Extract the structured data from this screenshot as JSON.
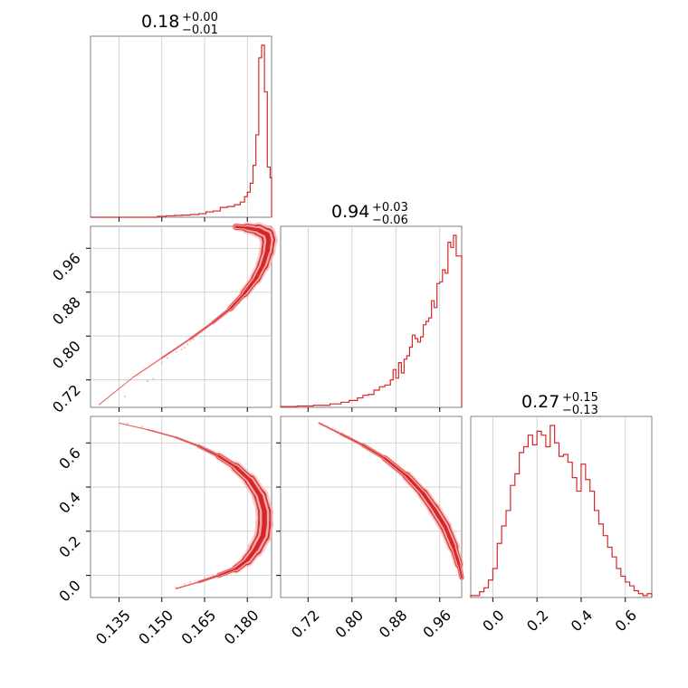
{
  "chart_data": {
    "type": "corner",
    "colors": {
      "main": "#d62728",
      "fill": "#f4a9a9",
      "points": "#ef9a9a"
    },
    "grid": true,
    "parameters": [
      {
        "index": 0,
        "range": [
          0.125,
          0.1885
        ],
        "ticks": [
          0.135,
          0.15,
          0.165,
          0.18
        ],
        "tick_labels": [
          "0.135",
          "0.150",
          "0.165",
          "0.180"
        ]
      },
      {
        "index": 1,
        "range": [
          0.67,
          1.0
        ],
        "ticks": [
          0.72,
          0.8,
          0.88,
          0.96
        ],
        "tick_labels": [
          "0.72",
          "0.80",
          "0.88",
          "0.96"
        ]
      },
      {
        "index": 2,
        "range": [
          -0.1,
          0.72
        ],
        "ticks": [
          0.0,
          0.2,
          0.4,
          0.6
        ],
        "tick_labels": [
          "0.0",
          "0.2",
          "0.4",
          "0.6"
        ]
      }
    ],
    "titles": [
      {
        "value": "0.18",
        "upper": "+0.00",
        "lower": "−0.01"
      },
      {
        "value": "0.94",
        "upper": "+0.03",
        "lower": "−0.06"
      },
      {
        "value": "0.27",
        "upper": "+0.15",
        "lower": "−0.13"
      }
    ],
    "histograms": [
      {
        "param": 0,
        "bin_edges": [
          0.125,
          0.1485,
          0.1515,
          0.1545,
          0.157,
          0.16,
          0.163,
          0.1655,
          0.168,
          0.1705,
          0.173,
          0.1755,
          0.1775,
          0.179,
          0.18,
          0.181,
          0.182,
          0.183,
          0.184,
          0.185,
          0.186,
          0.187,
          0.188,
          0.1885
        ],
        "counts": [
          0,
          0.005,
          0.008,
          0.01,
          0.012,
          0.015,
          0.02,
          0.03,
          0.035,
          0.055,
          0.06,
          0.07,
          0.085,
          0.115,
          0.14,
          0.19,
          0.29,
          0.46,
          0.89,
          0.96,
          0.7,
          0.28,
          0.22
        ]
      },
      {
        "param": 1,
        "bin_edges": [
          0.67,
          0.7,
          0.73,
          0.76,
          0.78,
          0.795,
          0.81,
          0.82,
          0.83,
          0.84,
          0.85,
          0.86,
          0.87,
          0.875,
          0.88,
          0.885,
          0.89,
          0.895,
          0.9,
          0.905,
          0.91,
          0.915,
          0.92,
          0.925,
          0.93,
          0.935,
          0.94,
          0.945,
          0.95,
          0.955,
          0.96,
          0.965,
          0.97,
          0.975,
          0.98,
          0.985,
          0.99,
          1.0
        ],
        "counts": [
          0.005,
          0.008,
          0.012,
          0.02,
          0.03,
          0.04,
          0.055,
          0.07,
          0.075,
          0.1,
          0.12,
          0.13,
          0.16,
          0.22,
          0.17,
          0.26,
          0.2,
          0.28,
          0.3,
          0.35,
          0.42,
          0.4,
          0.38,
          0.41,
          0.48,
          0.5,
          0.52,
          0.62,
          0.58,
          0.72,
          0.73,
          0.8,
          0.78,
          0.96,
          0.93,
          1.0,
          0.88
        ]
      },
      {
        "param": 2,
        "bin_edges": [
          -0.1,
          -0.06,
          -0.04,
          -0.02,
          0.0,
          0.02,
          0.04,
          0.06,
          0.08,
          0.1,
          0.12,
          0.14,
          0.16,
          0.18,
          0.2,
          0.22,
          0.24,
          0.26,
          0.28,
          0.3,
          0.32,
          0.34,
          0.36,
          0.38,
          0.4,
          0.42,
          0.44,
          0.46,
          0.48,
          0.5,
          0.52,
          0.54,
          0.56,
          0.58,
          0.6,
          0.62,
          0.64,
          0.66,
          0.68,
          0.7,
          0.72
        ],
        "counts": [
          0.01,
          0.03,
          0.05,
          0.09,
          0.15,
          0.28,
          0.37,
          0.45,
          0.58,
          0.64,
          0.75,
          0.78,
          0.84,
          0.79,
          0.86,
          0.84,
          0.78,
          0.89,
          0.8,
          0.73,
          0.74,
          0.7,
          0.62,
          0.55,
          0.69,
          0.61,
          0.55,
          0.45,
          0.38,
          0.32,
          0.26,
          0.21,
          0.15,
          0.11,
          0.08,
          0.06,
          0.035,
          0.02,
          0.01,
          0.02
        ]
      }
    ],
    "contour_curves": [
      {
        "xparam": 0,
        "yparam": 1,
        "points": [
          [
            0.128,
            0.675
          ],
          [
            0.14,
            0.725
          ],
          [
            0.15,
            0.76
          ],
          [
            0.16,
            0.795
          ],
          [
            0.168,
            0.825
          ],
          [
            0.174,
            0.85
          ],
          [
            0.179,
            0.878
          ],
          [
            0.183,
            0.905
          ],
          [
            0.1855,
            0.93
          ],
          [
            0.187,
            0.955
          ],
          [
            0.1875,
            0.975
          ],
          [
            0.187,
            0.985
          ],
          [
            0.184,
            0.993
          ],
          [
            0.18,
            0.997
          ],
          [
            0.176,
            0.999
          ]
        ],
        "band_widths": [
          0.5,
          0.6,
          0.8,
          1.2,
          1.6,
          2.5,
          4.5,
          6,
          7,
          8,
          9,
          9,
          7,
          5,
          3
        ]
      },
      {
        "xparam": 0,
        "yparam": 2,
        "points": [
          [
            0.135,
            0.69
          ],
          [
            0.145,
            0.66
          ],
          [
            0.155,
            0.625
          ],
          [
            0.163,
            0.585
          ],
          [
            0.17,
            0.54
          ],
          [
            0.176,
            0.49
          ],
          [
            0.181,
            0.43
          ],
          [
            0.1845,
            0.36
          ],
          [
            0.186,
            0.29
          ],
          [
            0.186,
            0.23
          ],
          [
            0.1855,
            0.18
          ],
          [
            0.183,
            0.12
          ],
          [
            0.18,
            0.07
          ],
          [
            0.176,
            0.03
          ],
          [
            0.17,
            0.0
          ],
          [
            0.163,
            -0.03
          ],
          [
            0.155,
            -0.06
          ]
        ],
        "band_widths": [
          0.5,
          0.7,
          1,
          1.5,
          3,
          5,
          7,
          8,
          9,
          9,
          9,
          8,
          6,
          4,
          2,
          1,
          0.6
        ]
      },
      {
        "xparam": 1,
        "yparam": 2,
        "points": [
          [
            0.74,
            0.69
          ],
          [
            0.78,
            0.64
          ],
          [
            0.82,
            0.59
          ],
          [
            0.86,
            0.53
          ],
          [
            0.9,
            0.45
          ],
          [
            0.93,
            0.37
          ],
          [
            0.95,
            0.3
          ],
          [
            0.97,
            0.22
          ],
          [
            0.985,
            0.13
          ],
          [
            0.995,
            0.05
          ],
          [
            1.0,
            -0.01
          ]
        ],
        "band_widths": [
          0.8,
          1.2,
          2,
          3,
          4.5,
          6,
          6.5,
          7,
          6,
          4,
          2
        ]
      }
    ],
    "scatter_points": [
      {
        "xparam": 0,
        "yparam": 1,
        "points": [
          [
            0.137,
            0.69
          ],
          [
            0.145,
            0.718
          ],
          [
            0.147,
            0.722
          ],
          [
            0.15,
            0.752
          ],
          [
            0.152,
            0.76
          ],
          [
            0.155,
            0.771
          ],
          [
            0.157,
            0.776
          ],
          [
            0.159,
            0.785
          ],
          [
            0.16,
            0.79
          ],
          [
            0.162,
            0.8
          ],
          [
            0.163,
            0.806
          ],
          [
            0.165,
            0.812
          ],
          [
            0.166,
            0.818
          ],
          [
            0.168,
            0.826
          ],
          [
            0.169,
            0.83
          ],
          [
            0.171,
            0.838
          ],
          [
            0.172,
            0.842
          ],
          [
            0.174,
            0.85
          ],
          [
            0.158,
            0.779
          ],
          [
            0.161,
            0.794
          ],
          [
            0.167,
            0.822
          ],
          [
            0.17,
            0.834
          ],
          [
            0.176,
            0.862
          ],
          [
            0.173,
            0.845
          ],
          [
            0.164,
            0.808
          ],
          [
            0.175,
            0.848
          ],
          [
            0.177,
            0.86
          ],
          [
            0.178,
            0.87
          ],
          [
            0.18,
            0.882
          ],
          [
            0.181,
            0.89
          ]
        ]
      },
      {
        "xparam": 0,
        "yparam": 2,
        "points": [
          [
            0.138,
            0.688
          ],
          [
            0.143,
            0.674
          ],
          [
            0.147,
            0.655
          ],
          [
            0.15,
            0.646
          ],
          [
            0.153,
            0.632
          ],
          [
            0.156,
            0.62
          ],
          [
            0.158,
            0.61
          ],
          [
            0.16,
            0.6
          ],
          [
            0.162,
            0.594
          ],
          [
            0.164,
            0.58
          ],
          [
            0.166,
            0.572
          ],
          [
            0.168,
            0.56
          ],
          [
            0.169,
            0.552
          ],
          [
            0.171,
            0.545
          ],
          [
            0.173,
            0.53
          ],
          [
            0.175,
            0.515
          ],
          [
            0.177,
            0.5
          ],
          [
            0.159,
            0.606
          ],
          [
            0.165,
            0.575
          ],
          [
            0.17,
            0.548
          ],
          [
            0.174,
            0.52
          ],
          [
            0.157,
            0.616
          ],
          [
            0.163,
            0.59
          ],
          [
            0.167,
            0.566
          ],
          [
            0.172,
            0.536
          ],
          [
            0.16,
            -0.03
          ],
          [
            0.165,
            -0.01
          ],
          [
            0.168,
            0.0
          ],
          [
            0.172,
            0.02
          ],
          [
            0.158,
            -0.04
          ],
          [
            0.17,
            0.01
          ],
          [
            0.174,
            0.03
          ],
          [
            0.155,
            -0.055
          ]
        ]
      },
      {
        "xparam": 1,
        "yparam": 2,
        "points": [
          [
            0.745,
            0.685
          ],
          [
            0.755,
            0.676
          ],
          [
            0.765,
            0.665
          ],
          [
            0.77,
            0.66
          ],
          [
            0.78,
            0.645
          ],
          [
            0.79,
            0.63
          ],
          [
            0.8,
            0.62
          ],
          [
            0.81,
            0.605
          ],
          [
            0.815,
            0.598
          ],
          [
            0.825,
            0.585
          ],
          [
            0.835,
            0.57
          ],
          [
            0.845,
            0.556
          ],
          [
            0.795,
            0.628
          ],
          [
            0.805,
            0.612
          ],
          [
            0.82,
            0.59
          ],
          [
            0.83,
            0.578
          ],
          [
            0.84,
            0.562
          ],
          [
            0.85,
            0.548
          ],
          [
            0.775,
            0.652
          ],
          [
            0.785,
            0.64
          ]
        ]
      }
    ]
  }
}
